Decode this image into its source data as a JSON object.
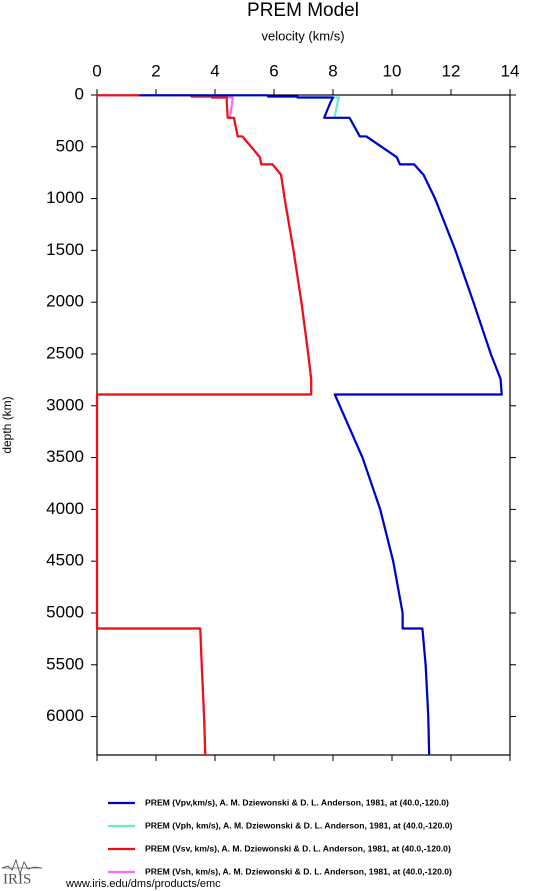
{
  "chart_data": {
    "type": "line",
    "title": "PREM Model",
    "subtitle": "velocity (km/s)",
    "y_label": "depth (km)",
    "xlim": [
      0,
      14
    ],
    "xticks": [
      0,
      2,
      4,
      6,
      8,
      10,
      12,
      14
    ],
    "ylim": [
      0,
      6371
    ],
    "yticks": [
      0,
      500,
      1000,
      1500,
      2000,
      2500,
      3000,
      3500,
      4000,
      4500,
      5000,
      5500,
      6000
    ],
    "y_inverted": true,
    "legend": "bottom",
    "series": [
      {
        "name": "PREM (Vpv,km/s), A. M. Dziewonski & D. L. Anderson, 1981, at (40.0,-120.0)",
        "color": "#0000cc",
        "x": [
          1.45,
          1.45,
          5.8,
          5.8,
          6.8,
          6.8,
          8.0,
          7.9,
          7.7,
          8.56,
          8.91,
          9.13,
          10.16,
          10.27,
          10.75,
          11.07,
          11.46,
          12.15,
          12.76,
          13.35,
          13.68,
          13.72,
          8.06,
          9.0,
          9.6,
          10.04,
          10.36,
          10.36,
          11.03,
          11.14,
          11.23,
          11.26
        ],
        "values": [
          0,
          3,
          3,
          15,
          15,
          24.4,
          24.4,
          80,
          220,
          220,
          400,
          400,
          600,
          670,
          670,
          771,
          1000,
          1500,
          2000,
          2500,
          2741,
          2891,
          2891,
          3500,
          4000,
          4500,
          5000,
          5150,
          5150,
          5500,
          6000,
          6371
        ]
      },
      {
        "name": "PREM (Vph, km/s), A. M. Dziewonski & D. L. Anderson, 1981, at (40.0,-120.0)",
        "color": "#66eecc",
        "x": [
          1.45,
          1.45,
          5.8,
          5.8,
          6.8,
          6.8,
          8.2,
          8.15,
          8.05,
          8.56,
          8.91,
          9.13,
          10.16,
          10.27,
          10.75,
          11.07,
          11.46,
          12.15,
          12.76,
          13.35,
          13.68,
          13.72,
          8.06,
          9.0,
          9.6,
          10.04,
          10.36,
          10.36,
          11.03,
          11.14,
          11.23,
          11.26
        ],
        "values": [
          0,
          3,
          3,
          15,
          15,
          24.4,
          24.4,
          80,
          220,
          220,
          400,
          400,
          600,
          670,
          670,
          771,
          1000,
          1500,
          2000,
          2500,
          2741,
          2891,
          2891,
          3500,
          4000,
          4500,
          5000,
          5150,
          5150,
          5500,
          6000,
          6371
        ]
      },
      {
        "name": "PREM (Vsv, km/s), A. M. Dziewonski & D. L. Anderson, 1981, at (40.0,-120.0)",
        "color": "#ee1111",
        "x": [
          0,
          0,
          3.2,
          3.2,
          3.9,
          3.9,
          4.4,
          4.4,
          4.43,
          4.64,
          4.77,
          4.93,
          5.52,
          5.57,
          5.95,
          6.24,
          6.36,
          6.66,
          6.93,
          7.16,
          7.26,
          7.26,
          0,
          0,
          0,
          0,
          0,
          0,
          3.5,
          3.55,
          3.63,
          3.67
        ],
        "values": [
          0,
          3,
          3,
          15,
          15,
          24.4,
          24.4,
          80,
          220,
          220,
          400,
          400,
          600,
          670,
          670,
          771,
          1000,
          1500,
          2000,
          2500,
          2741,
          2891,
          2891,
          3500,
          4000,
          4500,
          5000,
          5150,
          5150,
          5500,
          6000,
          6371
        ]
      },
      {
        "name": "PREM (Vsh, km/s), A. M. Dziewonski & D. L. Anderson, 1981, at (40.0,-120.0)",
        "color": "#ff66ff",
        "x": [
          0,
          0,
          3.2,
          3.2,
          3.9,
          3.9,
          4.6,
          4.58,
          4.5,
          4.64,
          4.77,
          4.93,
          5.52,
          5.57,
          5.95,
          6.24,
          6.36,
          6.66,
          6.93,
          7.16,
          7.26,
          7.26,
          0,
          0,
          0,
          0,
          0,
          0,
          3.5,
          3.55,
          3.63,
          3.67
        ],
        "values": [
          0,
          3,
          3,
          15,
          15,
          24.4,
          24.4,
          80,
          220,
          220,
          400,
          400,
          600,
          670,
          670,
          771,
          1000,
          1500,
          2000,
          2500,
          2741,
          2891,
          2891,
          3500,
          4000,
          4500,
          5000,
          5150,
          5150,
          5500,
          6000,
          6371
        ]
      }
    ]
  },
  "footer": {
    "logo": "IRIS",
    "url": "www.iris.edu/dms/products/emc"
  }
}
